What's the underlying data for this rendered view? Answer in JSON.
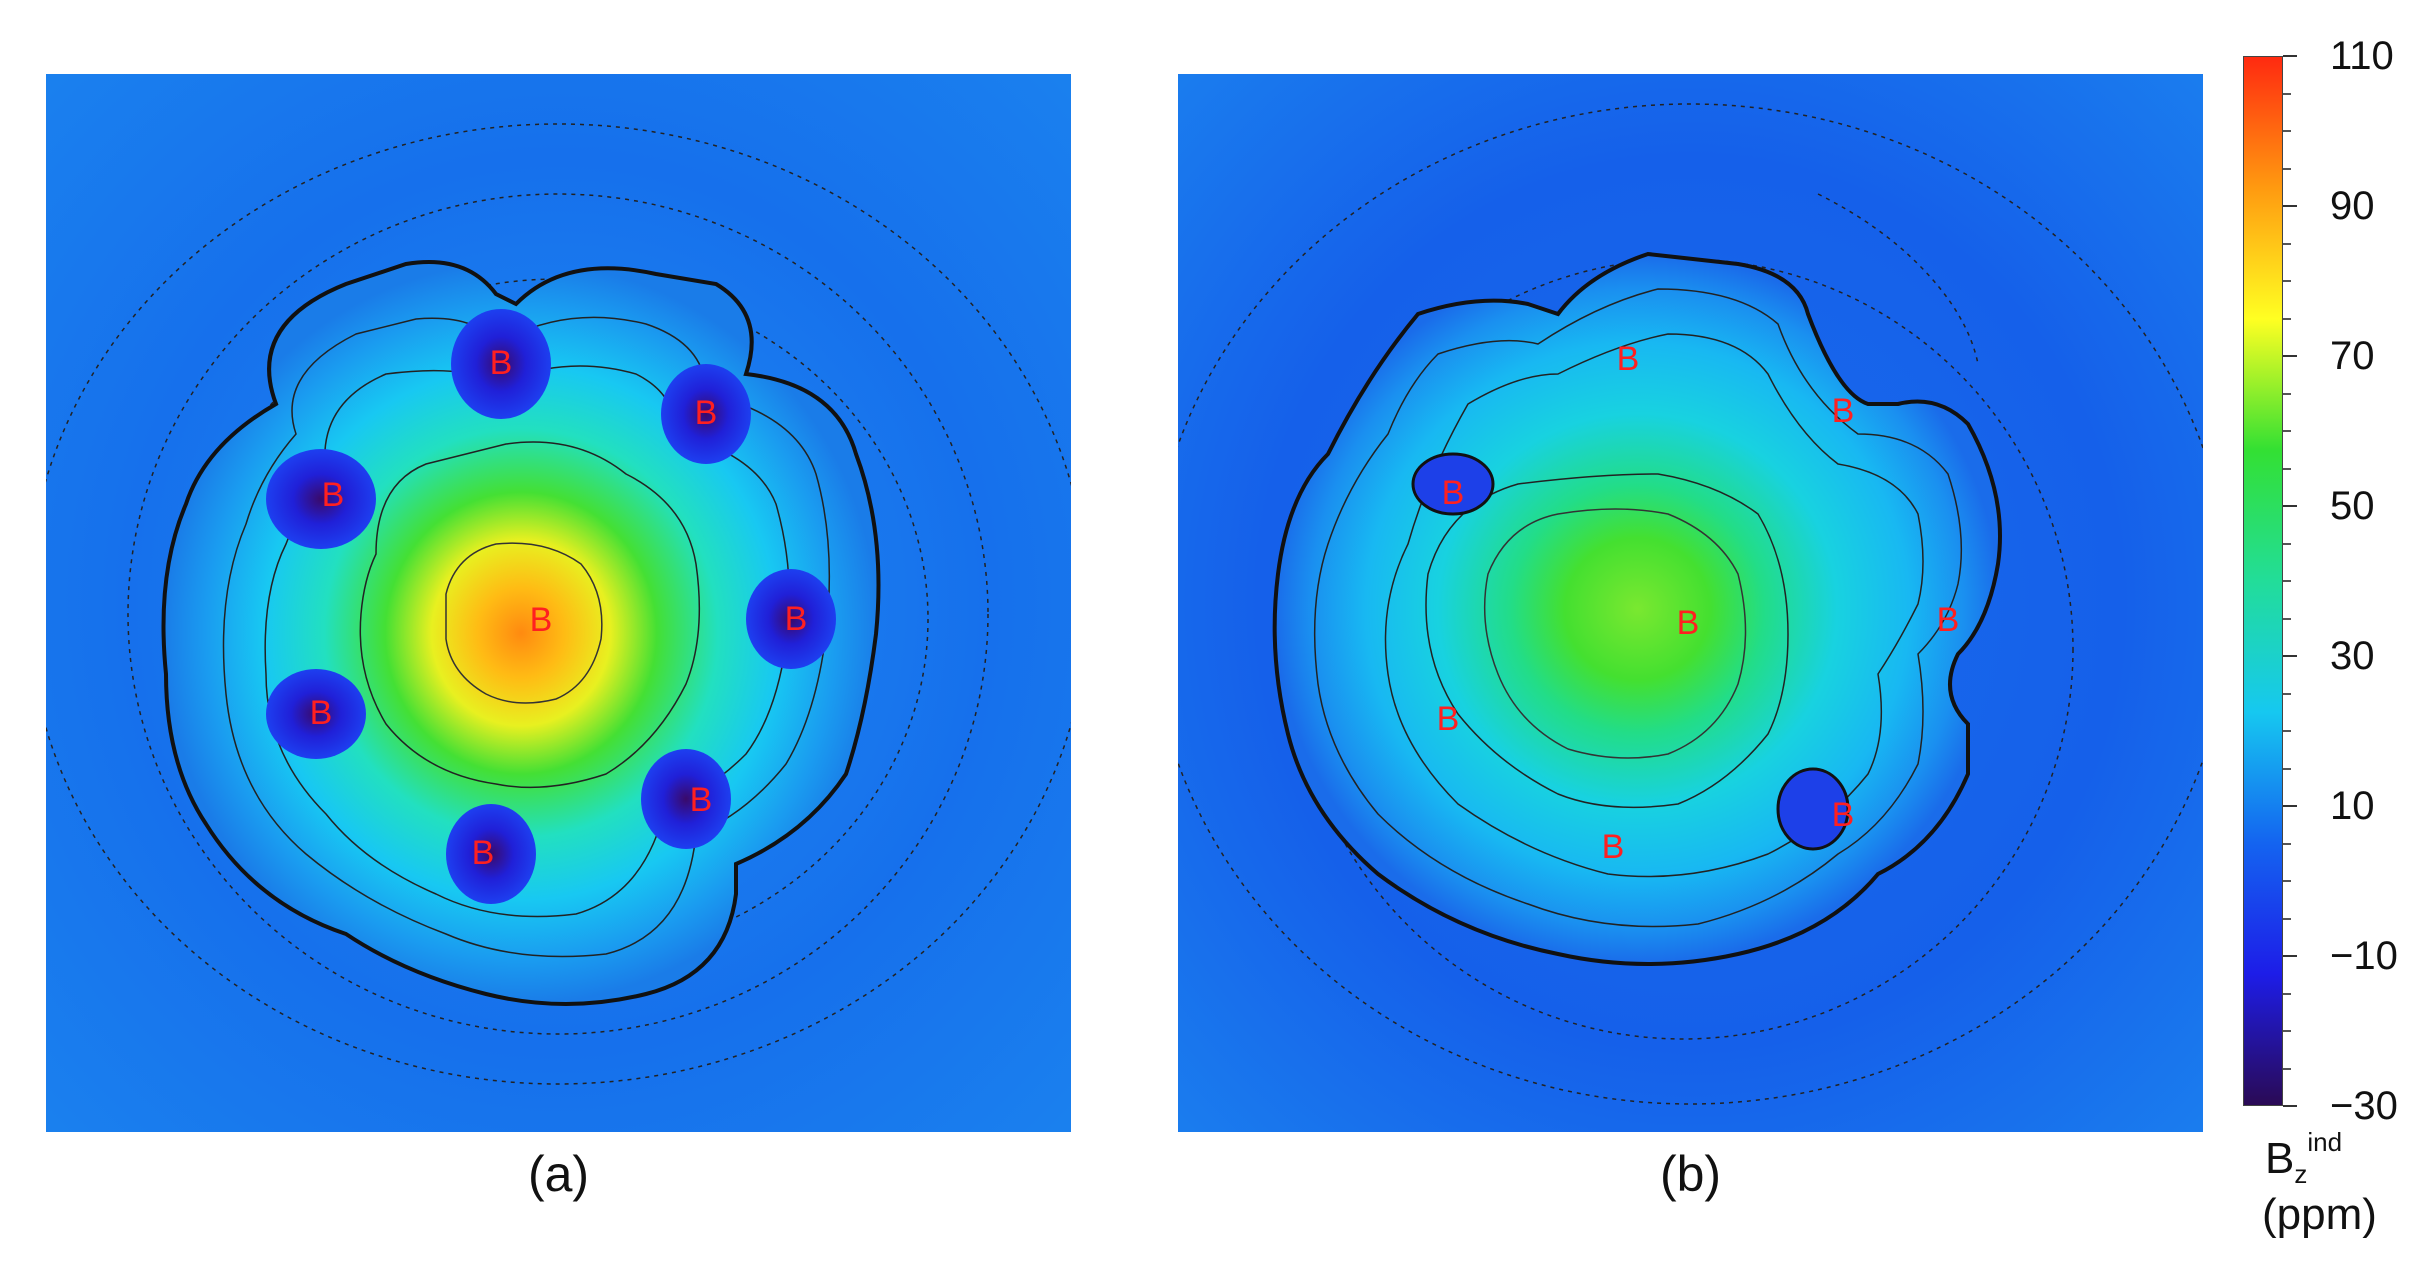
{
  "chart_data": [
    {
      "type": "heatmap",
      "panel_label": "(a)",
      "atom_labels": [
        "B",
        "B",
        "B",
        "B",
        "B",
        "B",
        "B",
        "B"
      ],
      "center_value_ppm": 90,
      "petal_count": 7,
      "colorscale": [
        "#2a0a55",
        "#1d1de8",
        "#1464f0",
        "#16c8f0",
        "#22dd99",
        "#33e033",
        "#ffff22",
        "#ff9a10",
        "#ff2a10"
      ]
    },
    {
      "type": "heatmap",
      "panel_label": "(b)",
      "atom_labels": [
        "B",
        "B",
        "B",
        "B",
        "B",
        "B",
        "B",
        "B"
      ],
      "center_value_ppm": 50,
      "petal_count": 7,
      "colorscale": [
        "#2a0a55",
        "#1d1de8",
        "#1464f0",
        "#16c8f0",
        "#22dd99",
        "#33e033",
        "#ffff22",
        "#ff9a10",
        "#ff2a10"
      ]
    }
  ],
  "colorbar": {
    "ticks": [
      "110",
      "90",
      "70",
      "50",
      "30",
      "10",
      "−10",
      "−30"
    ],
    "tick_values": [
      110,
      90,
      70,
      50,
      30,
      10,
      -10,
      -30
    ],
    "range": [
      -30,
      110
    ],
    "title_main": "B",
    "title_sub": "z",
    "title_sup": "ind",
    "unit": "(ppm)"
  }
}
